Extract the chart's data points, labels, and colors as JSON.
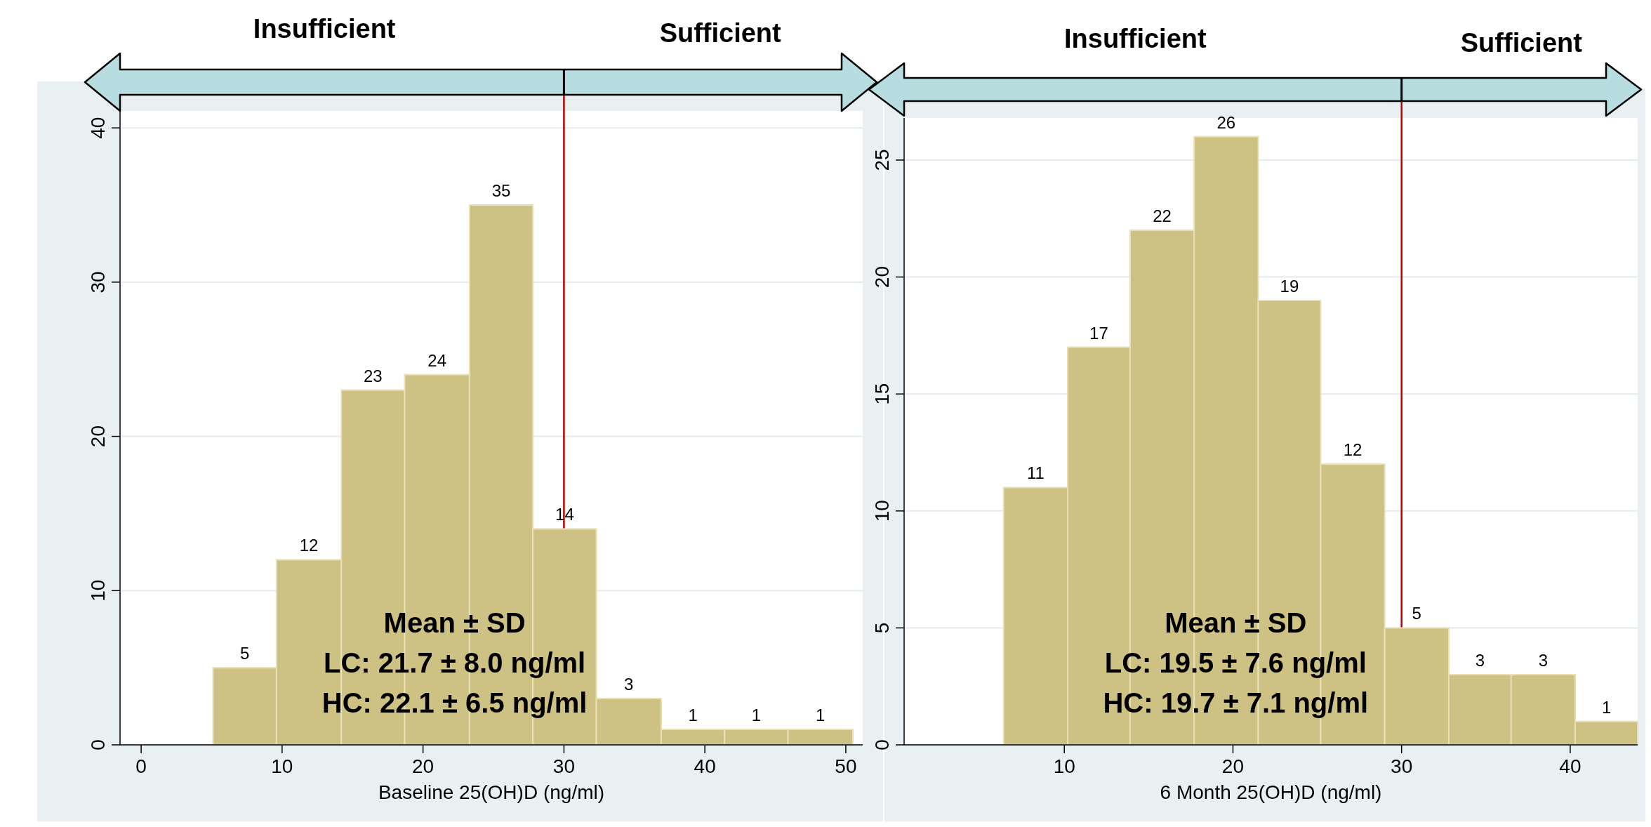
{
  "chart_data": [
    {
      "type": "histogram",
      "xlabel": "Baseline 25(OH)D (ng/ml)",
      "bins": [
        5.1,
        9.6,
        14.2,
        18.7,
        23.3,
        27.8,
        32.3,
        36.9,
        41.4,
        45.9,
        50.5
      ],
      "values": [
        5,
        12,
        23,
        24,
        35,
        14,
        3,
        1,
        1,
        1
      ],
      "color": "#cec184",
      "xlim": [
        -1.5,
        51.2
      ],
      "xticks": [
        0,
        10,
        20,
        30,
        40,
        50
      ],
      "ylim": [
        0,
        41.1
      ],
      "yticks": [
        0,
        10,
        20,
        30,
        40
      ],
      "grid": "y",
      "data_labels": true,
      "ref_lines": [
        {
          "axis": "x",
          "value": 30,
          "color": "#c00000"
        }
      ],
      "annotations": [
        "Insufficient",
        "Sufficient",
        "Mean ± SD",
        "LC: 21.7 ± 8.0 ng/ml",
        "HC: 22.1 ± 6.5 ng/ml"
      ]
    },
    {
      "type": "histogram",
      "xlabel": "6 Month 25(OH)D (ng/ml)",
      "bins": [
        6.4,
        10.2,
        13.9,
        17.7,
        21.5,
        25.2,
        29.0,
        32.8,
        36.5,
        40.3,
        44.0
      ],
      "values": [
        11,
        17,
        22,
        26,
        19,
        12,
        5,
        3,
        3,
        1
      ],
      "color": "#cec184",
      "xlim": [
        0.5,
        44.0
      ],
      "xticks": [
        10,
        20,
        30,
        40
      ],
      "ylim": [
        0,
        26.8
      ],
      "yticks": [
        0,
        5,
        10,
        15,
        20,
        25
      ],
      "grid": "y",
      "data_labels": true,
      "ref_lines": [
        {
          "axis": "x",
          "value": 30,
          "color": "#c00000"
        }
      ],
      "annotations": [
        "Insufficient",
        "Sufficient",
        "Mean ± SD",
        "LC: 19.5 ± 7.6 ng/ml",
        "HC: 19.7 ± 7.1 ng/ml"
      ]
    }
  ]
}
